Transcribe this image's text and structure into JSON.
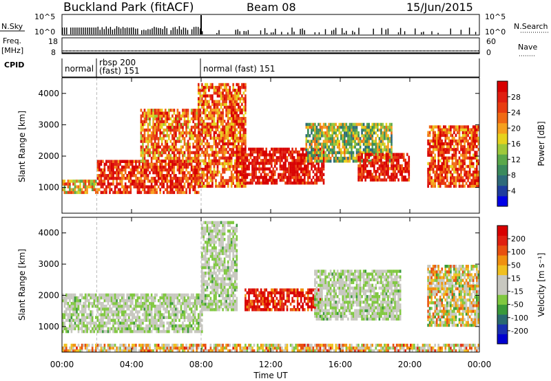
{
  "header": {
    "radar": "Buckland Park (fitACF)",
    "beam": "Beam 08",
    "date": "15/Jun/2015"
  },
  "strips": {
    "nsky_label": "N.Sky",
    "nsearch_label": "N.Search",
    "nsky_ticks": [
      "10^5",
      "10^0"
    ],
    "freq_label_1": "Freq.",
    "freq_label_2": "[MHz]",
    "freq_ticks": [
      "18",
      "8"
    ],
    "nave_label": "Nave",
    "nave_ticks": [
      "60",
      "0"
    ],
    "cpid_label": "CPID",
    "cpid_segments": [
      {
        "text": "normal",
        "start": 0,
        "end": 2
      },
      {
        "text": "rbsp 200",
        "text2": "(fast) 151",
        "start": 2,
        "end": 8
      },
      {
        "text": "normal (fast) 151",
        "start": 8,
        "end": 24
      }
    ]
  },
  "panels": [
    {
      "name": "power",
      "ylabel": "Slant Range [km]",
      "yticks": [
        "4000",
        "3000",
        "2000",
        "1000"
      ],
      "colorbar": {
        "label": "Power [dB]",
        "ticks": [
          "28",
          "24",
          "20",
          "16",
          "12",
          "8",
          "4"
        ],
        "colors": [
          "#0000e6",
          "#1e3c9e",
          "#2e6a7a",
          "#3a8a5c",
          "#5aa84a",
          "#9ec83a",
          "#e6d21e",
          "#f5a01e",
          "#f06a14",
          "#e83c10",
          "#e01e10",
          "#d80000"
        ]
      }
    },
    {
      "name": "velocity",
      "ylabel": "Slant Range [km]",
      "yticks": [
        "4000",
        "3000",
        "2000",
        "1000"
      ],
      "colorbar": {
        "label": "Velocity [m s⁻¹]",
        "ticks": [
          "200",
          "100",
          "50",
          "15",
          "-15",
          "-50",
          "-100",
          "-200"
        ],
        "colors": [
          "#0000d0",
          "#1a30b0",
          "#2a6a70",
          "#3a9a3a",
          "#80c840",
          "#c8c8c0",
          "#c8c8c0",
          "#f0c020",
          "#f09010",
          "#e85010",
          "#e02010",
          "#d80000"
        ]
      }
    }
  ],
  "xaxis": {
    "label": "Time UT",
    "ticks": [
      "00:00",
      "04:00",
      "08:00",
      "12:00",
      "16:00",
      "20:00",
      "00:00"
    ]
  },
  "chart_data": {
    "type": "heatmap",
    "title": "Buckland Park (fitACF)   Beam 08   15/Jun/2015",
    "xlabel": "Time UT",
    "ylabel": "Slant Range [km]",
    "xlim_hours": [
      0,
      24
    ],
    "ylim_km": [
      180,
      4500
    ],
    "power_range_db": [
      0,
      30
    ],
    "velocity_range_ms": [
      -250,
      250
    ],
    "echo_regions_power": [
      {
        "t0": 0.0,
        "t1": 2.0,
        "r0": 800,
        "r1": 1200,
        "level": 0.6
      },
      {
        "t0": 2.0,
        "t1": 7.8,
        "r0": 800,
        "r1": 1800,
        "level": 0.85
      },
      {
        "t0": 4.5,
        "t1": 7.8,
        "r0": 1800,
        "r1": 3500,
        "level": 0.7
      },
      {
        "t0": 7.8,
        "t1": 10.5,
        "r0": 1000,
        "r1": 4300,
        "level": 0.75
      },
      {
        "t0": 10.0,
        "t1": 15.0,
        "r0": 1100,
        "r1": 2200,
        "level": 0.95
      },
      {
        "t0": 14.0,
        "t1": 19.0,
        "r0": 1800,
        "r1": 3000,
        "level": 0.45
      },
      {
        "t0": 17.0,
        "t1": 20.0,
        "r0": 1200,
        "r1": 2100,
        "level": 0.9
      },
      {
        "t0": 21.0,
        "t1": 24.0,
        "r0": 1000,
        "r1": 2900,
        "level": 0.8
      }
    ],
    "echo_regions_velocity": [
      {
        "t0": 0.0,
        "t1": 8.0,
        "r0": 800,
        "r1": 2000,
        "level": 0.45
      },
      {
        "t0": 8.0,
        "t1": 10.0,
        "r0": 1500,
        "r1": 4300,
        "level": 0.3
      },
      {
        "t0": 10.5,
        "t1": 14.8,
        "r0": 1500,
        "r1": 2200,
        "level": 0.95
      },
      {
        "t0": 14.5,
        "t1": 19.5,
        "r0": 1200,
        "r1": 2800,
        "level": 0.4
      },
      {
        "t0": 21.0,
        "t1": 24.0,
        "r0": 1000,
        "r1": 2900,
        "level": 0.55
      },
      {
        "t0": 0.0,
        "t1": 24.0,
        "r0": 180,
        "r1": 400,
        "level": 0.6
      }
    ]
  }
}
